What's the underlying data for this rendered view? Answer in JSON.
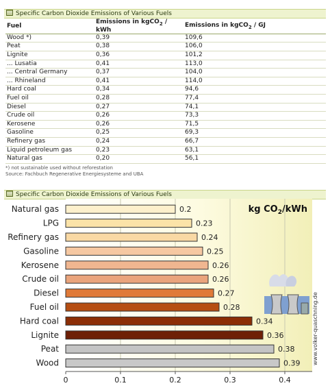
{
  "table": {
    "title": "Specific Carbon Dioxide Emissions of Various Fuels",
    "headers": {
      "fuel": "Fuel",
      "kwh_prefix": "Emissions in kgCO",
      "kwh_sub": "2",
      "kwh_suffix": " / kWh",
      "gj_prefix": "Emissions in kgCO",
      "gj_sub": "2",
      "gj_suffix": " / GJ"
    },
    "rows": [
      {
        "fuel": "Wood *)",
        "kwh": "0,39",
        "gj": "109,6"
      },
      {
        "fuel": "Peat",
        "kwh": "0,38",
        "gj": "106,0"
      },
      {
        "fuel": "Lignite",
        "kwh": "0,36",
        "gj": "101,2"
      },
      {
        "fuel": "... Lusatia",
        "kwh": "0,41",
        "gj": "113,0"
      },
      {
        "fuel": "... Central Germany",
        "kwh": "0,37",
        "gj": "104,0"
      },
      {
        "fuel": "... Rhineland",
        "kwh": "0,41",
        "gj": "114,0"
      },
      {
        "fuel": "Hard coal",
        "kwh": "0,34",
        "gj": "94,6"
      },
      {
        "fuel": "Fuel oil",
        "kwh": "0,28",
        "gj": "77,4"
      },
      {
        "fuel": "Diesel",
        "kwh": "0,27",
        "gj": "74,1"
      },
      {
        "fuel": "Crude oil",
        "kwh": "0,26",
        "gj": "73,3"
      },
      {
        "fuel": "Kerosene",
        "kwh": "0,26",
        "gj": "71,5"
      },
      {
        "fuel": "Gasoline",
        "kwh": "0,25",
        "gj": "69,3"
      },
      {
        "fuel": "Refinery gas",
        "kwh": "0,24",
        "gj": "66,7"
      },
      {
        "fuel": "Liquid petroleum gas",
        "kwh": "0,23",
        "gj": "63,1"
      },
      {
        "fuel": "Natural gas",
        "kwh": "0,20",
        "gj": "56,1"
      }
    ],
    "footnote": "*) not sustainable used without reforestation",
    "source": "Source: Fachbuch Regenerative Energiesysteme and UBA"
  },
  "chart_title": "Specific Carbon Dioxide Emissions of Various Fuels",
  "chart_data": {
    "type": "bar",
    "orientation": "horizontal",
    "categories": [
      "Natural gas",
      "LPG",
      "Refinery gas",
      "Gasoline",
      "Kerosene",
      "Crude oil",
      "Diesel",
      "Fuel oil",
      "Hard coal",
      "Lignite",
      "Peat",
      "Wood"
    ],
    "values": [
      0.2,
      0.23,
      0.24,
      0.25,
      0.26,
      0.26,
      0.27,
      0.28,
      0.34,
      0.36,
      0.38,
      0.39
    ],
    "bar_colors": [
      "#fdf0cc",
      "#fbe3a8",
      "#f9d9a4",
      "#f6c8a2",
      "#f0b690",
      "#eaa47c",
      "#e07a38",
      "#b64e12",
      "#8c2e06",
      "#6e2006",
      "#c4c4c4",
      "#c8c8c8"
    ],
    "unit_prefix": "kg CO",
    "unit_sub": "2",
    "unit_suffix": "/kWh",
    "xlim": [
      0,
      0.45
    ],
    "xticks": [
      0,
      0.1,
      0.2,
      0.3,
      0.4
    ],
    "xtick_labels": [
      "0",
      "0.1",
      "0.2",
      "0.3",
      "0.4"
    ],
    "grid": true,
    "watermark": "www.volker-quaschning.de"
  }
}
